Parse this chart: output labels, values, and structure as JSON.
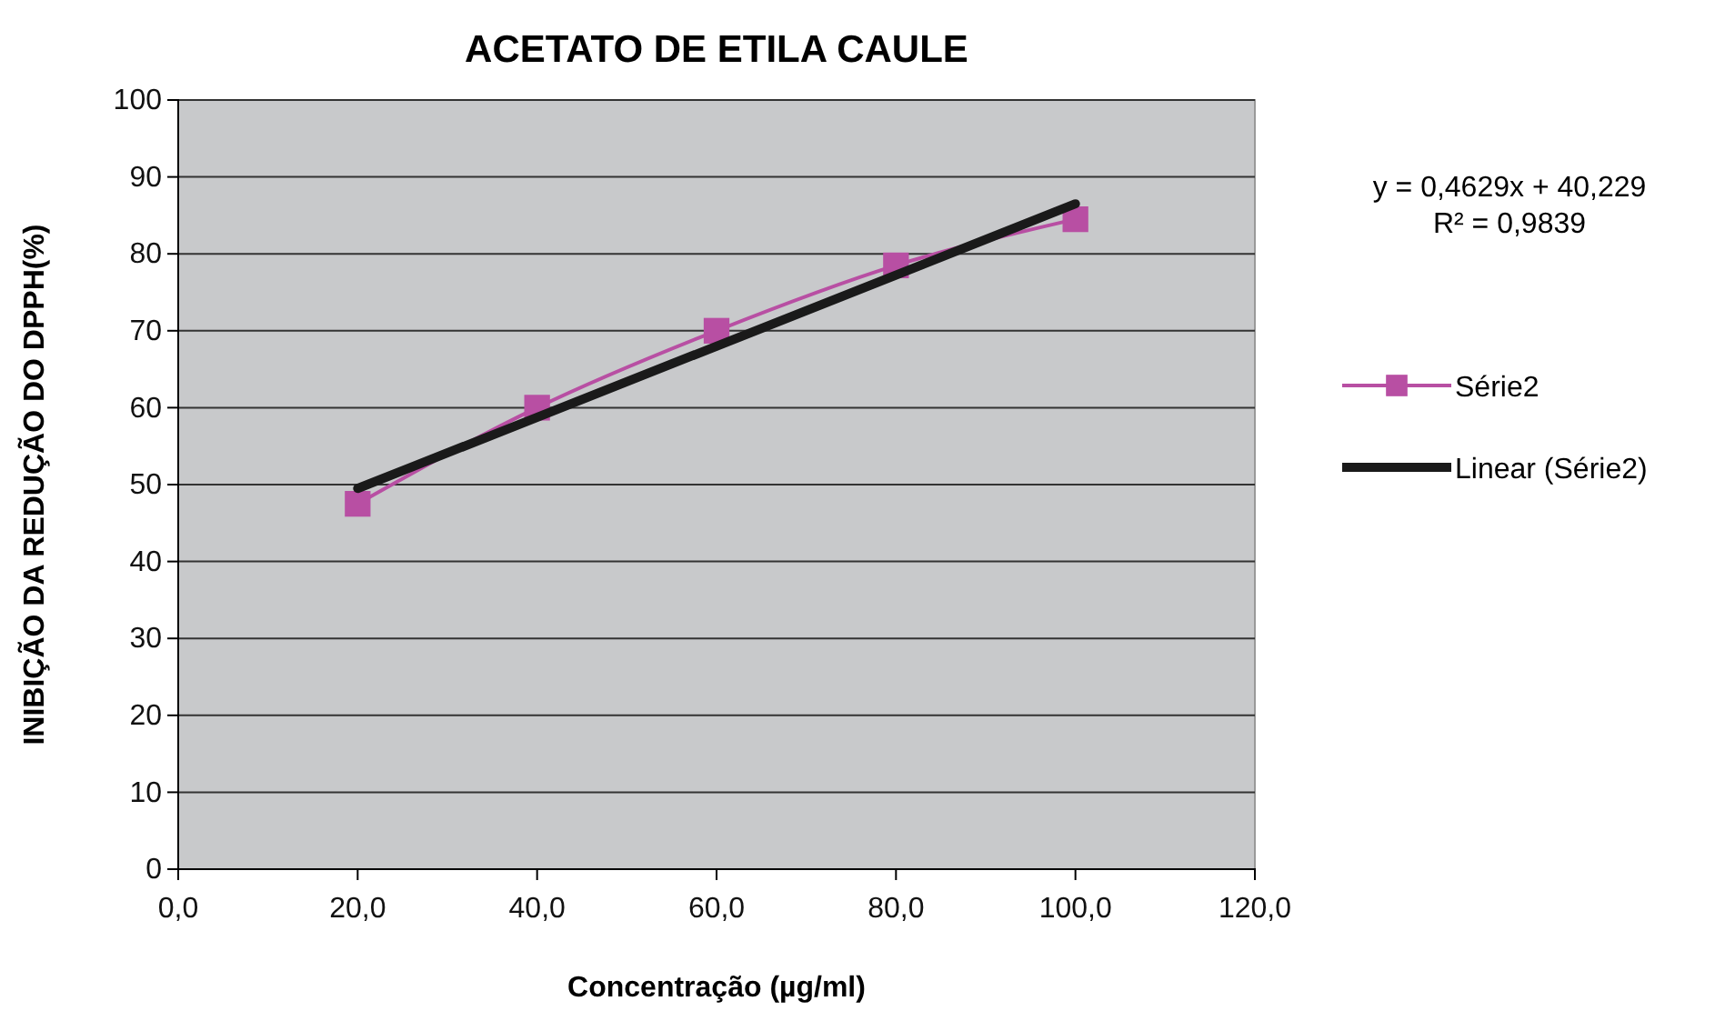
{
  "chart_data": {
    "type": "line",
    "title": "ACETATO DE ETILA CAULE",
    "xlabel": "Concentração  (µg/ml)",
    "ylabel": "INIBIÇÃO DA REDUÇÃO DO DPPH(%)",
    "x": [
      20,
      40,
      60,
      80,
      100
    ],
    "series": [
      {
        "name": "Série2",
        "color": "#b84fa3",
        "values": [
          47.5,
          60,
          70,
          78.5,
          84.5
        ]
      },
      {
        "name": "Linear (Série2)",
        "type": "line",
        "color": "#1a1a1a",
        "x": [
          20,
          100
        ],
        "values": [
          49.5,
          86.5
        ],
        "marker": "none"
      }
    ],
    "xlim": [
      0,
      120
    ],
    "xticks": [
      {
        "value": 0,
        "label": "0,0"
      },
      {
        "value": 20,
        "label": "20,0"
      },
      {
        "value": 40,
        "label": "40,0"
      },
      {
        "value": 60,
        "label": "60,0"
      },
      {
        "value": 80,
        "label": "80,0"
      },
      {
        "value": 100,
        "label": "100,0"
      },
      {
        "value": 120,
        "label": "120,0"
      }
    ],
    "ylim": [
      0,
      100
    ],
    "yticks": [
      0,
      10,
      20,
      30,
      40,
      50,
      60,
      70,
      80,
      90,
      100
    ],
    "grid": "y",
    "legend": "right",
    "marker": "square",
    "annotations": [
      "y = 0,4629x + 40,229",
      "R² = 0,9839"
    ]
  }
}
